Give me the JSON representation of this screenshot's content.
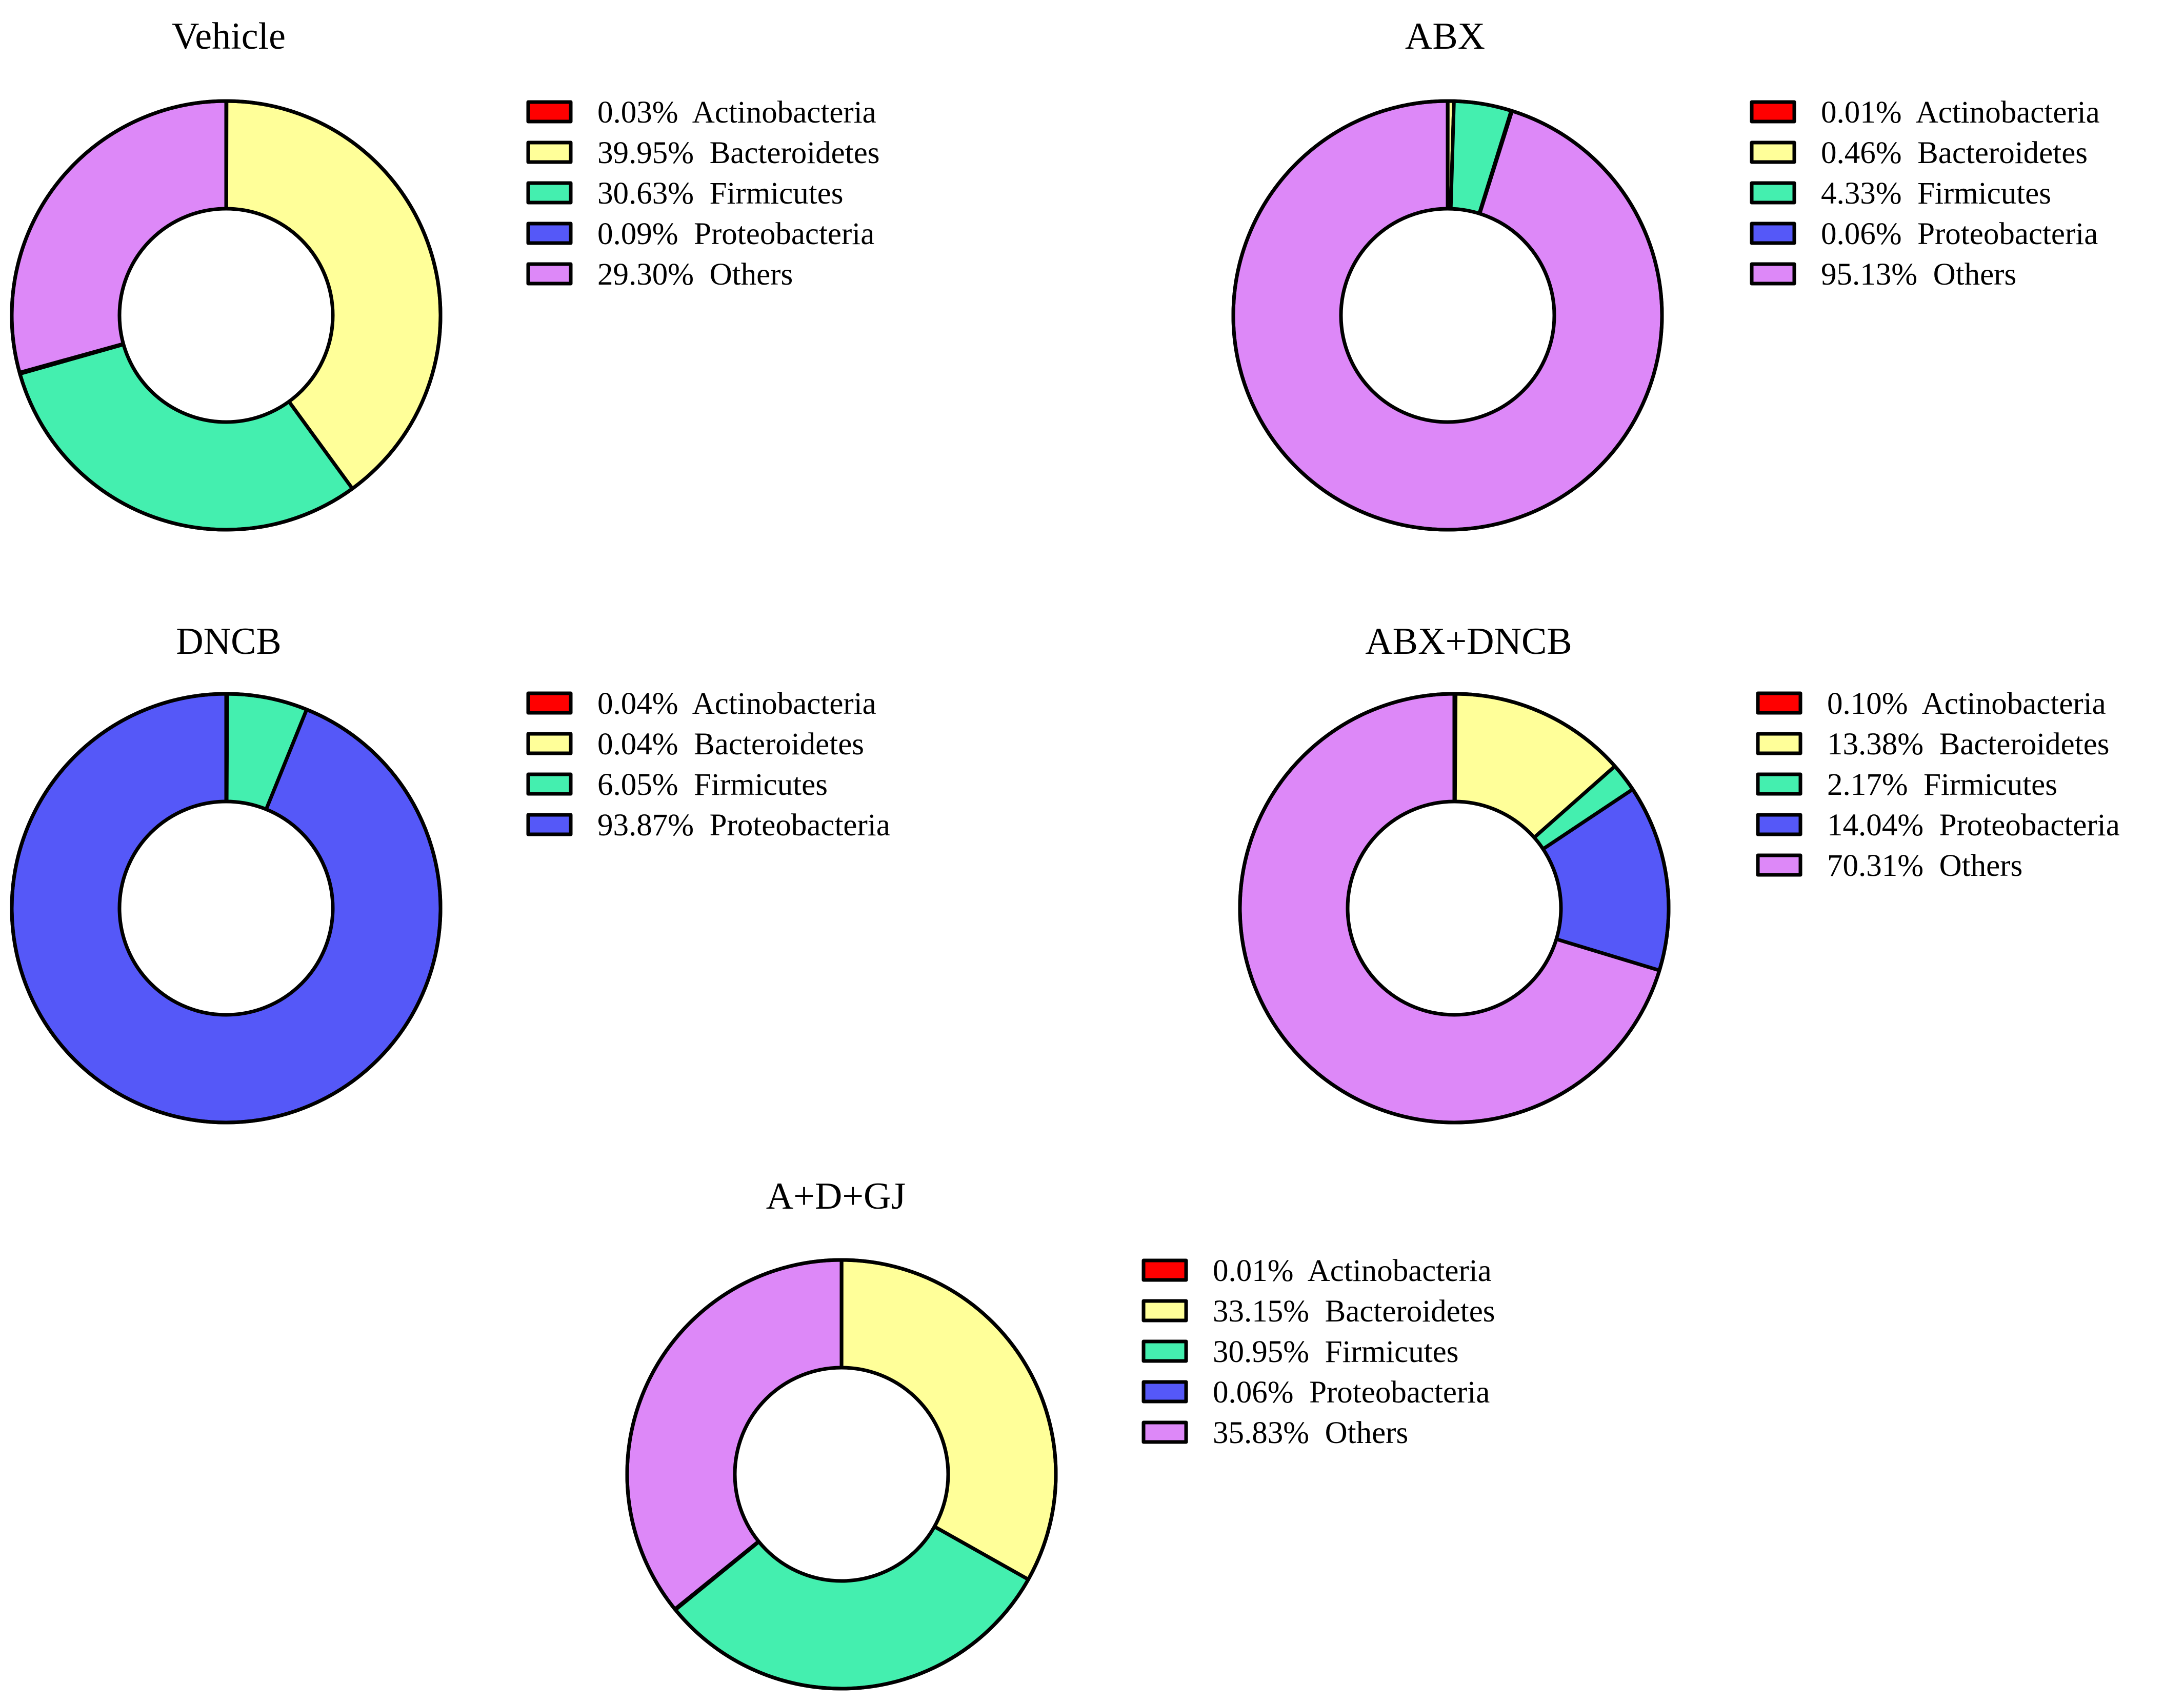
{
  "colors": {
    "Actinobacteria": "#ff0000",
    "Bacteroidetes": "#ffff99",
    "Firmicutes": "#44efaf",
    "Proteobacteria": "#5558f8",
    "Others": "#dd88f8"
  },
  "chart_data": [
    {
      "type": "pie",
      "title": "Vehicle",
      "slices": [
        {
          "label": "Actinobacteria",
          "value": 0.03,
          "text": "0.03%  Actinobacteria"
        },
        {
          "label": "Bacteroidetes",
          "value": 39.95,
          "text": "39.95%  Bacteroidetes"
        },
        {
          "label": "Firmicutes",
          "value": 30.63,
          "text": "30.63%  Firmicutes"
        },
        {
          "label": "Proteobacteria",
          "value": 0.09,
          "text": "0.09%  Proteobacteria"
        },
        {
          "label": "Others",
          "value": 29.3,
          "text": "29.30%  Others"
        }
      ]
    },
    {
      "type": "pie",
      "title": "ABX",
      "slices": [
        {
          "label": "Actinobacteria",
          "value": 0.01,
          "text": "0.01%  Actinobacteria"
        },
        {
          "label": "Bacteroidetes",
          "value": 0.46,
          "text": "0.46%  Bacteroidetes"
        },
        {
          "label": "Firmicutes",
          "value": 4.33,
          "text": "4.33%  Firmicutes"
        },
        {
          "label": "Proteobacteria",
          "value": 0.06,
          "text": "0.06%  Proteobacteria"
        },
        {
          "label": "Others",
          "value": 95.13,
          "text": "95.13%  Others"
        }
      ]
    },
    {
      "type": "pie",
      "title": "DNCB",
      "slices": [
        {
          "label": "Actinobacteria",
          "value": 0.04,
          "text": "0.04%  Actinobacteria"
        },
        {
          "label": "Bacteroidetes",
          "value": 0.04,
          "text": "0.04%  Bacteroidetes"
        },
        {
          "label": "Firmicutes",
          "value": 6.05,
          "text": "6.05%  Firmicutes"
        },
        {
          "label": "Proteobacteria",
          "value": 93.87,
          "text": "93.87%  Proteobacteria"
        }
      ]
    },
    {
      "type": "pie",
      "title": "ABX+DNCB",
      "slices": [
        {
          "label": "Actinobacteria",
          "value": 0.1,
          "text": "0.10%  Actinobacteria"
        },
        {
          "label": "Bacteroidetes",
          "value": 13.38,
          "text": "13.38%  Bacteroidetes"
        },
        {
          "label": "Firmicutes",
          "value": 2.17,
          "text": "2.17%  Firmicutes"
        },
        {
          "label": "Proteobacteria",
          "value": 14.04,
          "text": "14.04%  Proteobacteria"
        },
        {
          "label": "Others",
          "value": 70.31,
          "text": "70.31%  Others"
        }
      ]
    },
    {
      "type": "pie",
      "title": "A+D+GJ",
      "slices": [
        {
          "label": "Actinobacteria",
          "value": 0.01,
          "text": "0.01%  Actinobacteria"
        },
        {
          "label": "Bacteroidetes",
          "value": 33.15,
          "text": "33.15%  Bacteroidetes"
        },
        {
          "label": "Firmicutes",
          "value": 30.95,
          "text": "30.95%  Firmicutes"
        },
        {
          "label": "Proteobacteria",
          "value": 0.06,
          "text": "0.06%  Proteobacteria"
        },
        {
          "label": "Others",
          "value": 35.83,
          "text": "35.83%  Others"
        }
      ]
    }
  ]
}
